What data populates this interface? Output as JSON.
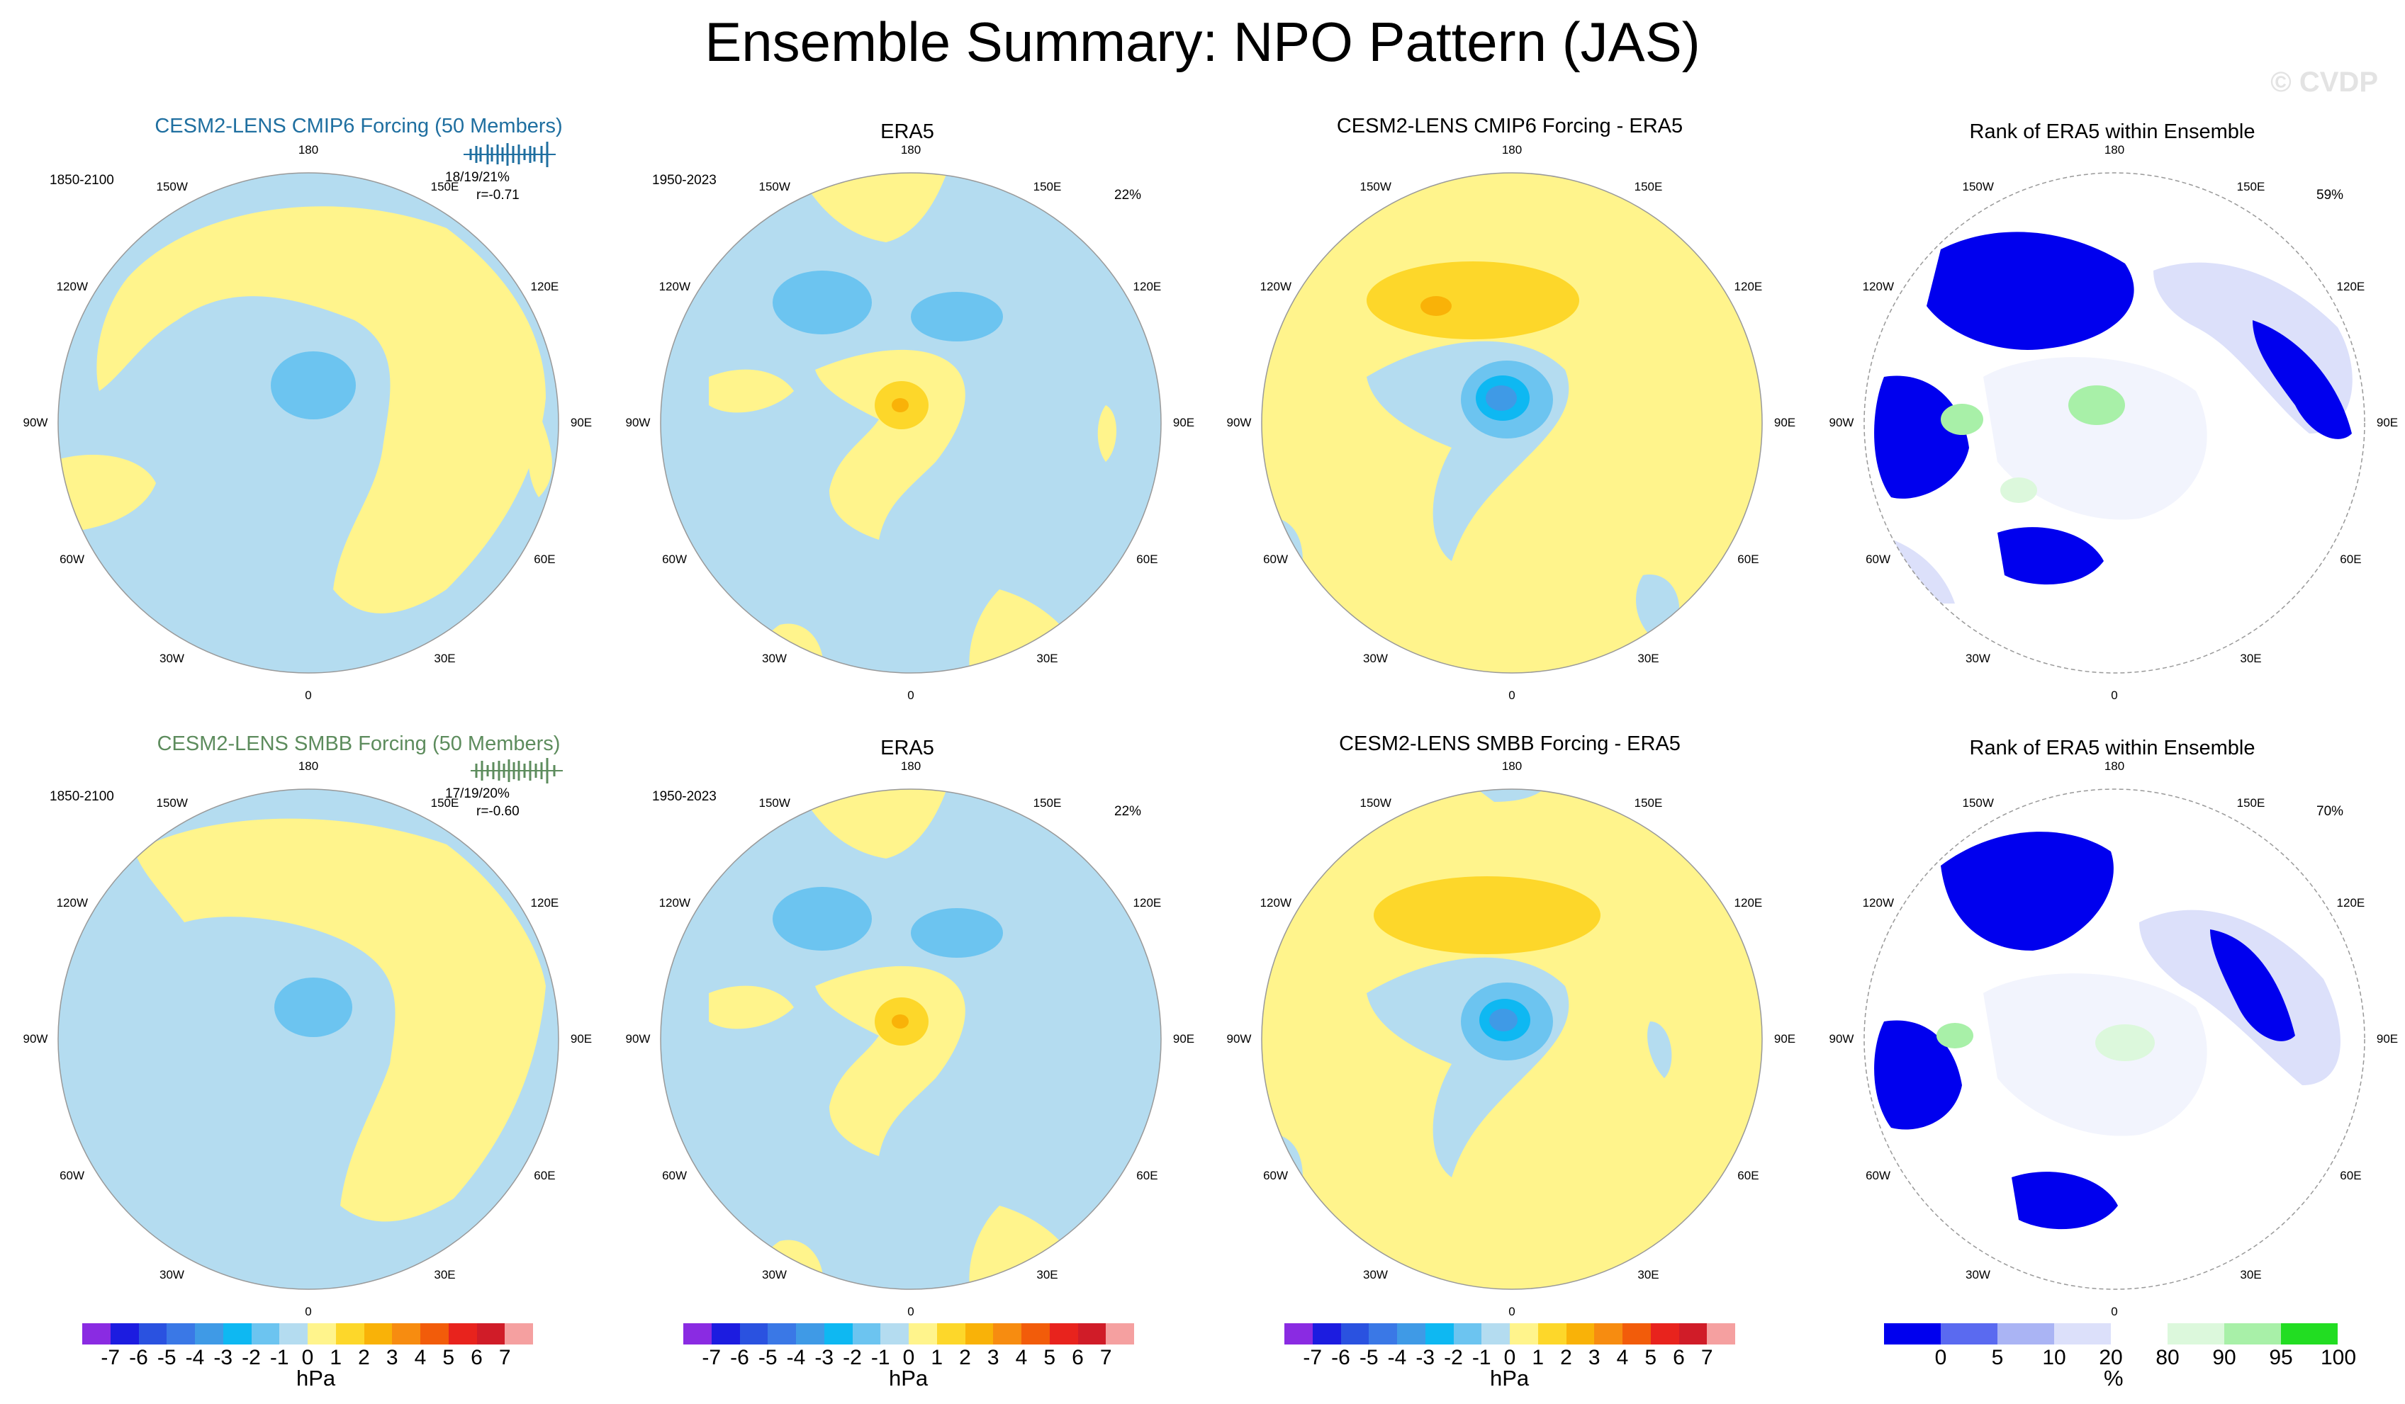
{
  "page": {
    "title": "Ensemble Summary: NPO Pattern (JAS)",
    "watermark": "© CVDP"
  },
  "longitude_labels": [
    "180",
    "150E",
    "120E",
    "90E",
    "60E",
    "30E",
    "0",
    "30W",
    "60W",
    "90W",
    "120W",
    "150W"
  ],
  "rows": [
    {
      "panels": [
        {
          "title": "CESM2-LENS CMIP6 Forcing (50 Members)",
          "period": "1850-2100",
          "stat_line1": "18/19/21%",
          "stat_line2": "r=-0.71"
        },
        {
          "title": "ERA5",
          "period": "1950-2023",
          "pct": "22%"
        },
        {
          "title": "CESM2-LENS CMIP6 Forcing - ERA5"
        },
        {
          "title": "Rank of ERA5 within Ensemble",
          "pct": "59%"
        }
      ]
    },
    {
      "panels": [
        {
          "title": "CESM2-LENS SMBB Forcing (50 Members)",
          "period": "1850-2100",
          "stat_line1": "17/19/20%",
          "stat_line2": "r=-0.60"
        },
        {
          "title": "ERA5",
          "period": "1950-2023",
          "pct": "22%"
        },
        {
          "title": "CESM2-LENS SMBB Forcing - ERA5"
        },
        {
          "title": "Rank of ERA5 within Ensemble",
          "pct": "70%"
        }
      ]
    }
  ],
  "colorbars": {
    "hpa": {
      "unit": "hPa",
      "labels": [
        "-7",
        "-6",
        "-5",
        "-4",
        "-3",
        "-2",
        "-1",
        "0",
        "1",
        "2",
        "3",
        "4",
        "5",
        "6",
        "7"
      ],
      "colors": [
        "#8a2be2",
        "#1c1ce0",
        "#2a52e0",
        "#3a78e6",
        "#3f9ae6",
        "#0eb8f2",
        "#6cc4f0",
        "#b4dcf0",
        "#fff48c",
        "#fdd72a",
        "#f9b208",
        "#f78c10",
        "#f25c0a",
        "#e8231d",
        "#d01c28",
        "#f5a0a0"
      ]
    },
    "rank": {
      "unit": "%",
      "labels": [
        "0",
        "5",
        "10",
        "20",
        "80",
        "90",
        "95",
        "100"
      ],
      "colors": [
        "#0000ee",
        "#5a6af0",
        "#aab4f4",
        "#dce0fa",
        "#ffffff",
        "#dcf8dc",
        "#a8f0a8",
        "#22dd22"
      ]
    }
  },
  "colors": {
    "ocean_neutral_negative": "#b4dcf0",
    "neutral_positive": "#fff48c",
    "negative_medium": "#6cc4f0",
    "positive_medium": "#fdd72a",
    "positive_strong": "#f9b208",
    "negative_strong": "#0eb8f2",
    "rank_low": "#0000ee",
    "rank_mid": "#5a6af0",
    "rank_light": "#dce0fa",
    "rank_green": "#a8f0a8"
  }
}
